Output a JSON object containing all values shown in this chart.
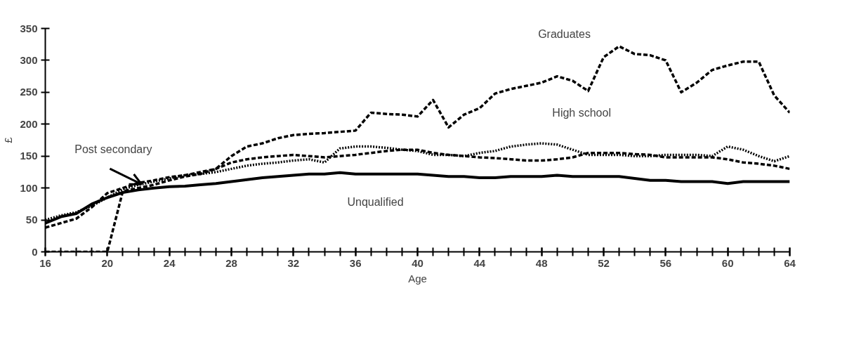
{
  "chart_data": {
    "type": "line",
    "xlabel": "Age",
    "ylabel": "£",
    "x": [
      16,
      17,
      18,
      19,
      20,
      21,
      22,
      23,
      24,
      25,
      26,
      27,
      28,
      29,
      30,
      31,
      32,
      33,
      34,
      35,
      36,
      37,
      38,
      39,
      40,
      41,
      42,
      43,
      44,
      45,
      46,
      47,
      48,
      49,
      50,
      51,
      52,
      53,
      54,
      55,
      56,
      57,
      58,
      59,
      60,
      61,
      62,
      63,
      64
    ],
    "series": [
      {
        "color": "#000000",
        "line_style": "dashed",
        "values": [
          0,
          0,
          0,
          0,
          0,
          95,
          100,
          105,
          112,
          118,
          122,
          130,
          150,
          165,
          170,
          178,
          183,
          185,
          186,
          188,
          190,
          218,
          216,
          215,
          212,
          238,
          195,
          215,
          225,
          248,
          255,
          260,
          265,
          275,
          268,
          252,
          305,
          322,
          310,
          308,
          300,
          250,
          265,
          285,
          292,
          298,
          298,
          245,
          218
        ]
      },
      {
        "color": "#000000",
        "line_style": "dotted",
        "values": [
          50,
          57,
          62,
          72,
          85,
          98,
          105,
          110,
          115,
          120,
          122,
          125,
          130,
          135,
          138,
          140,
          143,
          145,
          140,
          162,
          165,
          165,
          163,
          160,
          158,
          152,
          152,
          150,
          155,
          158,
          165,
          168,
          170,
          168,
          160,
          152,
          152,
          152,
          150,
          150,
          152,
          152,
          152,
          150,
          165,
          160,
          150,
          142,
          150
        ]
      },
      {
        "color": "#000000",
        "line_style": "dashed",
        "values": [
          38,
          45,
          52,
          70,
          92,
          100,
          108,
          112,
          117,
          120,
          125,
          130,
          140,
          145,
          148,
          150,
          152,
          150,
          148,
          150,
          152,
          155,
          158,
          160,
          160,
          155,
          152,
          150,
          148,
          147,
          145,
          143,
          143,
          145,
          148,
          155,
          155,
          155,
          153,
          152,
          148,
          148,
          148,
          148,
          145,
          140,
          138,
          135,
          130
        ]
      },
      {
        "color": "#000000",
        "line_style": "solid",
        "values": [
          45,
          55,
          60,
          75,
          85,
          93,
          97,
          100,
          102,
          103,
          105,
          107,
          110,
          113,
          116,
          118,
          120,
          122,
          122,
          124,
          122,
          122,
          122,
          122,
          122,
          120,
          118,
          118,
          116,
          116,
          118,
          118,
          118,
          120,
          118,
          118,
          118,
          118,
          115,
          112,
          112,
          110,
          110,
          110,
          107,
          110,
          110,
          110,
          110
        ]
      }
    ],
    "annotations": [
      {
        "text": "Graduates",
        "x": 51.7,
        "y": 300
      },
      {
        "text": "High school",
        "x": 48,
        "y": 172
      },
      {
        "text": "Post secondary",
        "x": 22.2,
        "y": 106
      },
      {
        "text": "Unqualified",
        "x": 40,
        "y": 122
      }
    ],
    "xlim": [
      16,
      64
    ],
    "ylim": [
      0,
      350
    ],
    "xticks": [
      16,
      20,
      24,
      28,
      32,
      36,
      40,
      44,
      48,
      52,
      56,
      60,
      64
    ],
    "yticks": [
      0,
      50,
      100,
      150,
      200,
      250,
      300,
      350
    ],
    "grid": false
  }
}
